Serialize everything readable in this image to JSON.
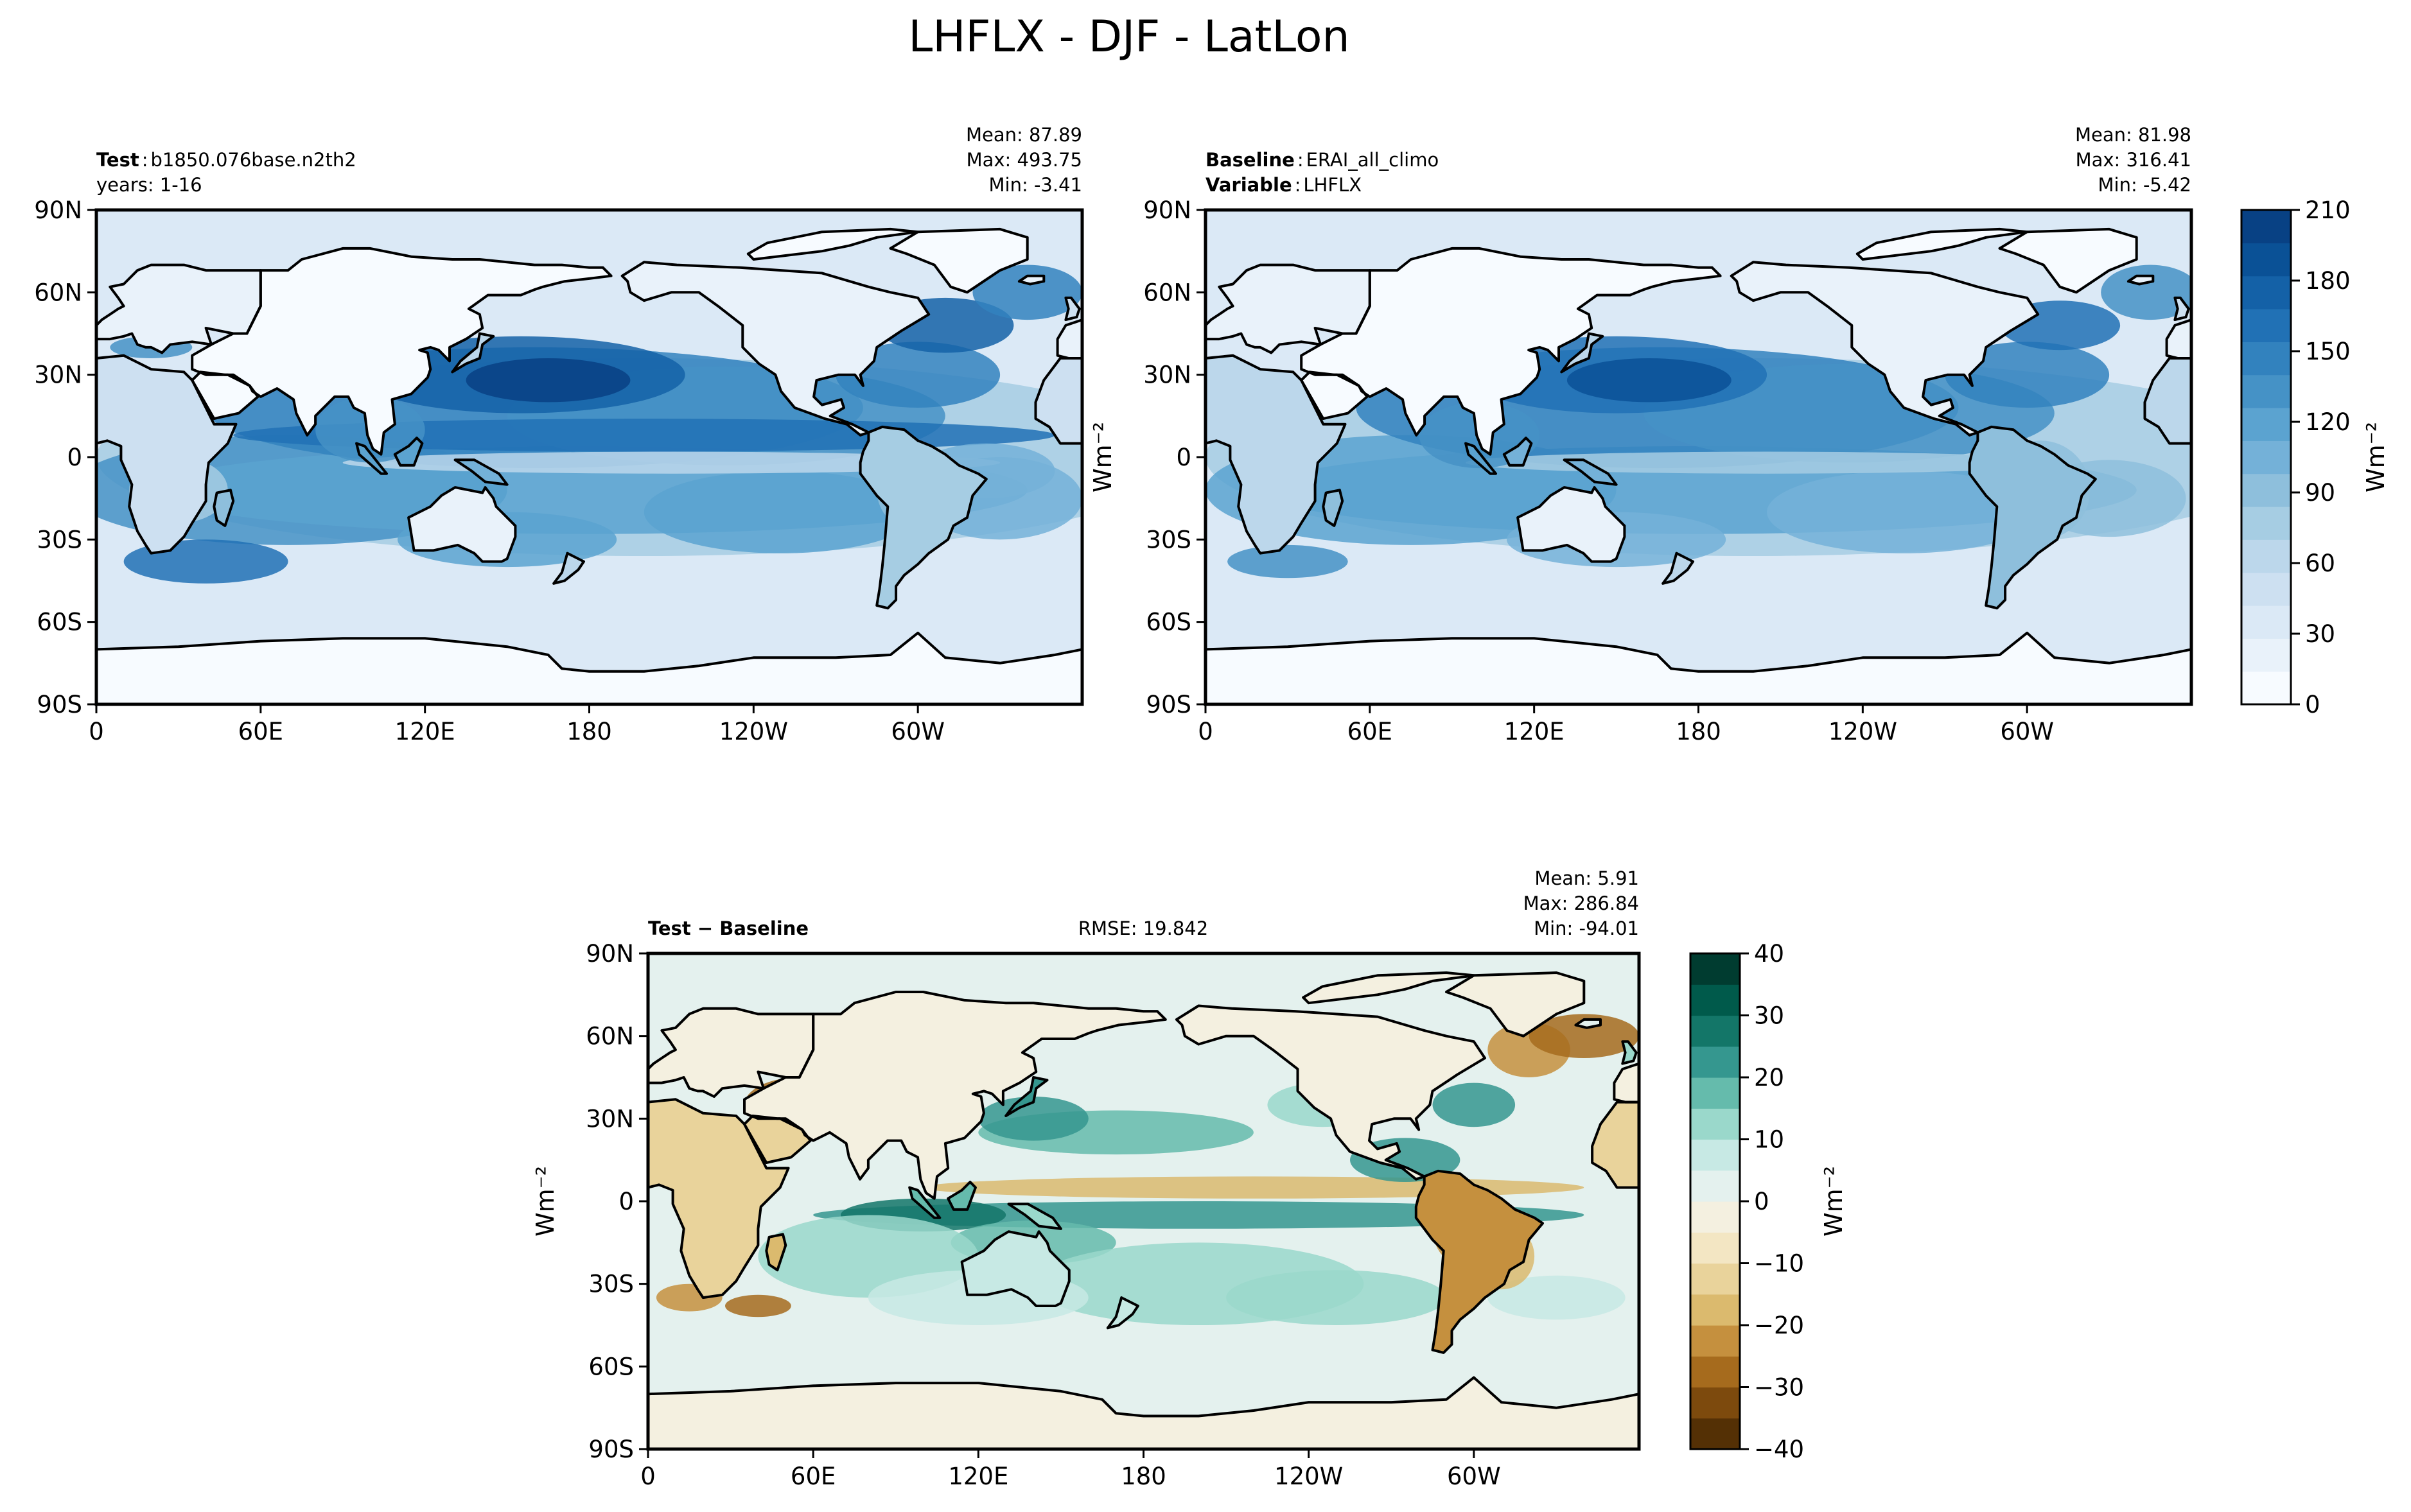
{
  "figure_title": "LHFLX - DJF - LatLon",
  "colors": {
    "blues": [
      "#f7fbff",
      "#e9f2fa",
      "#dbe9f6",
      "#cde0f1",
      "#bcd7eb",
      "#a6cde3",
      "#8ebfdc",
      "#74b1d8",
      "#5ba3d0",
      "#4592c6",
      "#3282be",
      "#2171b5",
      "#1461a7",
      "#0a5196",
      "#084184"
    ],
    "brbg": [
      "#543005",
      "#7d4a0d",
      "#a66b1d",
      "#c5903e",
      "#dbba6e",
      "#e9d39b",
      "#f3e6c3",
      "#f4f0e0",
      "#e4f1ee",
      "#c7e9e4",
      "#9ad8cb",
      "#65bbac",
      "#35978f",
      "#137668",
      "#005a4b",
      "#003c30"
    ],
    "frame": "#000000",
    "coast": "#000000",
    "land_void": "#ffffff"
  },
  "panels": {
    "test": {
      "label_bold": "Test",
      "label_sep": ":",
      "label_value": "b1850.076base.n2th2",
      "sub_label": "years: 1-16",
      "stats": [
        "Mean: 87.89",
        "Max: 493.75",
        "Min: -3.41"
      ]
    },
    "baseline": {
      "label_bold": "Baseline",
      "label_sep": ":",
      "label_value": "ERAI_all_climo",
      "sub_label_bold": "Variable",
      "sub_label_value": "LHFLX",
      "stats": [
        "Mean: 81.98",
        "Max: 316.41",
        "Min: -5.42"
      ]
    },
    "diff": {
      "label": "Test − Baseline",
      "rmse": "RMSE: 19.842",
      "stats": [
        "Mean:  5.91",
        "Max: 286.84",
        "Min: -94.01"
      ],
      "ylabel": "Wm⁻²"
    }
  },
  "baseline_ylabel": "Wm⁻²",
  "colorbar_top": {
    "label": "Wm⁻²",
    "ticks": [
      "0",
      "30",
      "60",
      "90",
      "120",
      "150",
      "180",
      "210"
    ]
  },
  "colorbar_diff": {
    "label": "Wm⁻²",
    "ticks": [
      "−40",
      "−30",
      "−20",
      "−10",
      "0",
      "10",
      "20",
      "30",
      "40"
    ]
  },
  "chart_data": [
    {
      "type": "heatmap",
      "name": "Test",
      "x": [
        0,
        60,
        120,
        180,
        240,
        300
      ],
      "xticklabels": [
        "0",
        "60E",
        "120E",
        "180",
        "120W",
        "60W"
      ],
      "yticklabels": [
        "90N",
        "60N",
        "30N",
        "0",
        "30S",
        "60S",
        "90S"
      ],
      "xlim": [
        0,
        360
      ],
      "ylim": [
        -90,
        90
      ],
      "vmin": 0,
      "vmax": 210,
      "mean": 87.89,
      "max": 493.75,
      "min": -3.41
    },
    {
      "type": "heatmap",
      "name": "Baseline",
      "x": [
        0,
        60,
        120,
        180,
        240,
        300
      ],
      "xticklabels": [
        "0",
        "60E",
        "120E",
        "180",
        "120W",
        "60W"
      ],
      "yticklabels": [
        "90N",
        "60N",
        "30N",
        "0",
        "30S",
        "60S",
        "90S"
      ],
      "xlim": [
        0,
        360
      ],
      "ylim": [
        -90,
        90
      ],
      "vmin": 0,
      "vmax": 210,
      "mean": 81.98,
      "max": 316.41,
      "min": -5.42
    },
    {
      "type": "heatmap",
      "name": "Test − Baseline",
      "x": [
        0,
        60,
        120,
        180,
        240,
        300
      ],
      "xticklabels": [
        "0",
        "60E",
        "120E",
        "180",
        "120W",
        "60W"
      ],
      "yticklabels": [
        "90N",
        "60N",
        "30N",
        "0",
        "30S",
        "60S",
        "90S"
      ],
      "xlim": [
        0,
        360
      ],
      "ylim": [
        -90,
        90
      ],
      "vmin": -40,
      "vmax": 40,
      "mean": 5.91,
      "max": 286.84,
      "min": -94.01,
      "rmse": 19.842
    }
  ]
}
